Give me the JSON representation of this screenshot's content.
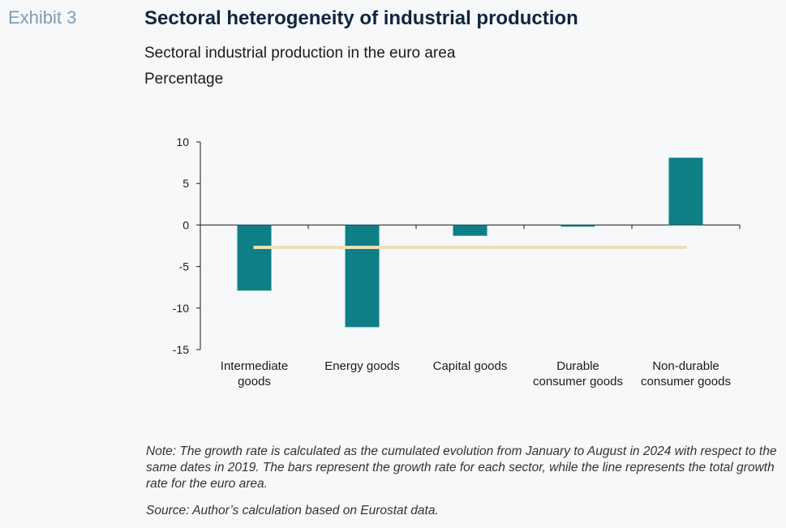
{
  "header": {
    "exhibit": "Exhibit 3",
    "title": "Sectoral heterogeneity of industrial production",
    "subtitle": "Sectoral industrial production in the euro area",
    "units": "Percentage"
  },
  "chart_data": {
    "type": "bar",
    "categories": [
      [
        "Intermediate",
        "goods"
      ],
      [
        "Energy goods"
      ],
      [
        "Capital goods"
      ],
      [
        "Durable",
        "consumer goods"
      ],
      [
        "Non-durable",
        "consumer goods"
      ]
    ],
    "values": [
      -7.9,
      -12.3,
      -1.3,
      -0.2,
      8.1
    ],
    "reference_line": -2.7,
    "yticks": [
      10,
      5,
      0,
      -5,
      -10,
      -15
    ],
    "ylim": [
      -15,
      10
    ],
    "grid": false,
    "colors": {
      "bar": "#0f7f87",
      "line": "#eedfb6",
      "axis": "#1b1b1b"
    }
  },
  "footer": {
    "note": "Note: The growth rate is calculated as the cumulated evolution from January to August in 2024 with respect to the same dates in 2019. The bars represent the growth rate for each sector, while the line represents the total growth rate for the euro area.",
    "source": "Source: Author’s calculation based on Eurostat data."
  }
}
